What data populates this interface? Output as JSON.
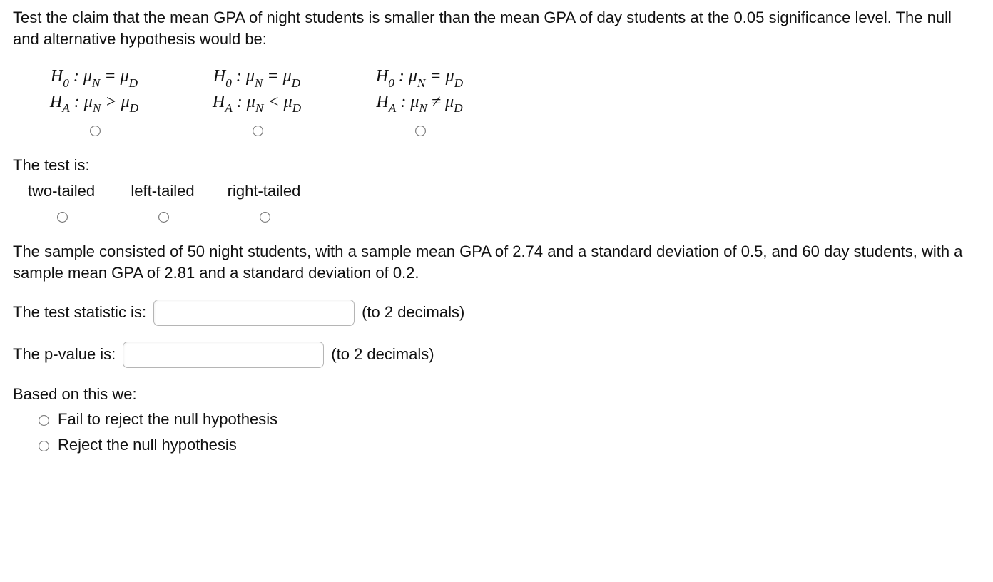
{
  "intro": "Test the claim that the mean GPA of night students is smaller than the mean GPA of day students at the 0.05 significance level. The null and alternative hypothesis would be:",
  "hypotheses": {
    "opt1_h0": "H₀ : μN = μD",
    "opt1_ha": "HA : μN > μD",
    "opt2_h0": "H₀ : μN = μD",
    "opt2_ha": "HA : μN < μD",
    "opt3_h0": "H₀ : μN = μD",
    "opt3_ha": "HA : μN ≠ μD"
  },
  "test_is_label": "The test is:",
  "tails": {
    "two": "two-tailed",
    "left": "left-tailed",
    "right": "right-tailed"
  },
  "sample_para": "The sample consisted of 50 night students, with a sample mean GPA of 2.74 and a standard deviation of 0.5, and 60 day students, with a sample mean GPA of 2.81 and a standard deviation of 0.2.",
  "test_statistic_label": "The test statistic is:",
  "to_2_decimals": "(to 2 decimals)",
  "pvalue_label": "The p-value is:",
  "based_on_this_label": "Based on this we:",
  "decision": {
    "fail": "Fail to reject the null hypothesis",
    "reject": "Reject the null hypothesis"
  },
  "inputs": {
    "test_statistic_value": "",
    "pvalue_value": ""
  },
  "math": {
    "H": "H",
    "zero": "0",
    "A": "A",
    "mu": "μ",
    "N": "N",
    "D": "D",
    "eq": "=",
    "gt": ">",
    "lt": "<",
    "ne": "≠",
    "colon": ":"
  }
}
